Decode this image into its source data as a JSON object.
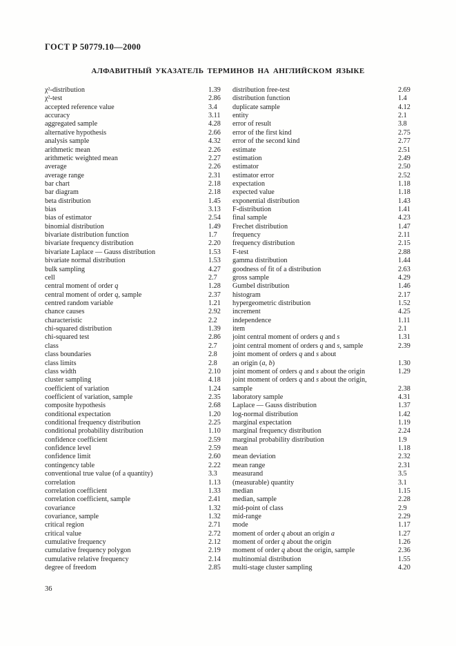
{
  "page": {
    "header": "ГОСТ Р 50779.10—2000",
    "title": "АЛФАВИТНЫЙ УКАЗАТЕЛЬ ТЕРМИНОВ НА АНГЛИЙСКОМ ЯЗЫКЕ",
    "page_number": "36"
  },
  "index": {
    "left_column": [
      {
        "term": "χ²-distribution",
        "ref": "1.39"
      },
      {
        "term": "χ²-test",
        "ref": "2.86"
      },
      {
        "term": "accepted reference value",
        "ref": "3.4"
      },
      {
        "term": "accuracy",
        "ref": "3.11"
      },
      {
        "term": "aggregated sample",
        "ref": "4.28"
      },
      {
        "term": "alternative hypothesis",
        "ref": "2.66"
      },
      {
        "term": "analysis sample",
        "ref": "4.32"
      },
      {
        "term": "arithmetic mean",
        "ref": "2.26"
      },
      {
        "term": "arithmetic weighted mean",
        "ref": "2.27"
      },
      {
        "term": "average",
        "ref": "2.26"
      },
      {
        "term": "average range",
        "ref": "2.31"
      },
      {
        "term": "bar chart",
        "ref": "2.18"
      },
      {
        "term": "bar diagram",
        "ref": "2.18"
      },
      {
        "term": "beta distribution",
        "ref": "1.45"
      },
      {
        "term": "bias",
        "ref": "3.13"
      },
      {
        "term": "bias of estimator",
        "ref": "2.54"
      },
      {
        "term": "binomial distribution",
        "ref": "1.49"
      },
      {
        "term": "bivariate distribution function",
        "ref": "1.7"
      },
      {
        "term": "bivariate frequency distribution",
        "ref": "2.20"
      },
      {
        "term": "bivariate Laplace — Gauss distribution",
        "ref": "1.53"
      },
      {
        "term": "bivariate normal distribution",
        "ref": "1.53"
      },
      {
        "term": "bulk sampling",
        "ref": "4.27"
      },
      {
        "term": "cell",
        "ref": "2.7"
      },
      {
        "term": "central moment of order *q*",
        "ref": "1.28"
      },
      {
        "term": "central moment of order *q*, sample",
        "ref": "2.37"
      },
      {
        "term": "centred random variable",
        "ref": "1.21"
      },
      {
        "term": "chance causes",
        "ref": "2.92"
      },
      {
        "term": "characteristic",
        "ref": "2.2"
      },
      {
        "term": "chi-squared distribution",
        "ref": "1.39"
      },
      {
        "term": "chi-squared test",
        "ref": "2.86"
      },
      {
        "term": "class",
        "ref": "2.7"
      },
      {
        "term": "class boundaries",
        "ref": "2.8"
      },
      {
        "term": "class limits",
        "ref": "2.8"
      },
      {
        "term": "class width",
        "ref": "2.10"
      },
      {
        "term": "cluster sampling",
        "ref": "4.18"
      },
      {
        "term": "coefficient of variation",
        "ref": "1.24"
      },
      {
        "term": "coefficient of variation, sample",
        "ref": "2.35"
      },
      {
        "term": "composite hypothesis",
        "ref": "2.68"
      },
      {
        "term": "conditional expectation",
        "ref": "1.20"
      },
      {
        "term": "conditional frequency distribution",
        "ref": "2.25"
      },
      {
        "term": "conditional probability distribution",
        "ref": "1.10"
      },
      {
        "term": "confidence coefficient",
        "ref": "2.59"
      },
      {
        "term": "confidence level",
        "ref": "2.59"
      },
      {
        "term": "confidence limit",
        "ref": "2.60"
      },
      {
        "term": "contingency table",
        "ref": "2.22"
      },
      {
        "term": "conventional true value (of a quantity)",
        "ref": "3.3"
      },
      {
        "term": "correlation",
        "ref": "1.13"
      },
      {
        "term": "correlation coefficient",
        "ref": "1.33"
      },
      {
        "term": "correlation coefficient, sample",
        "ref": "2.41"
      },
      {
        "term": "covariance",
        "ref": "1.32"
      },
      {
        "term": "covariance, sample",
        "ref": "1.32"
      },
      {
        "term": "critical region",
        "ref": "2.71"
      },
      {
        "term": "critical value",
        "ref": "2.72"
      },
      {
        "term": "cumulative frequency",
        "ref": "2.12"
      },
      {
        "term": "cumulative frequency polygon",
        "ref": "2.19"
      },
      {
        "term": "cumulative relative frequency",
        "ref": "2.14"
      },
      {
        "term": "degree of freedom",
        "ref": "2.85"
      }
    ],
    "right_column": [
      {
        "term": "distribution free-test",
        "ref": "2.69"
      },
      {
        "term": "distribution function",
        "ref": "1.4"
      },
      {
        "term": "duplicate sample",
        "ref": "4.12"
      },
      {
        "term": "entity",
        "ref": "2.1"
      },
      {
        "term": "error of result",
        "ref": "3.8"
      },
      {
        "term": "error of the first kind",
        "ref": "2.75"
      },
      {
        "term": "error of the second kind",
        "ref": "2.77"
      },
      {
        "term": "estimate",
        "ref": "2.51"
      },
      {
        "term": "estimation",
        "ref": "2.49"
      },
      {
        "term": "estimator",
        "ref": "2.50"
      },
      {
        "term": "estimator error",
        "ref": "2.52"
      },
      {
        "term": "expectation",
        "ref": "1.18"
      },
      {
        "term": "expected value",
        "ref": "1.18"
      },
      {
        "term": "exponential distribution",
        "ref": "1.43"
      },
      {
        "term": "F-distribution",
        "ref": "1.41"
      },
      {
        "term": "final sample",
        "ref": "4.23"
      },
      {
        "term": "Frechet distribution",
        "ref": "1.47"
      },
      {
        "term": "frequency",
        "ref": "2.11"
      },
      {
        "term": "frequency distribution",
        "ref": "2.15"
      },
      {
        "term": "F-test",
        "ref": "2.88"
      },
      {
        "term": "gamma distribution",
        "ref": "1.44"
      },
      {
        "term": "goodness of fit of a distribution",
        "ref": "2.63"
      },
      {
        "term": "gross sample",
        "ref": "4.29"
      },
      {
        "term": "Gumbel distribution",
        "ref": "1.46"
      },
      {
        "term": "histogram",
        "ref": "2.17"
      },
      {
        "term": "hypergeometric distribution",
        "ref": "1.52"
      },
      {
        "term": "increment",
        "ref": "4.25"
      },
      {
        "term": "independence",
        "ref": "1.11"
      },
      {
        "term": "item",
        "ref": "2.1"
      },
      {
        "term": "joint central moment of orders *q* and *s*",
        "ref": "1.31"
      },
      {
        "term": "joint central moment of orders *q* and *s*, sample",
        "ref": "2.39"
      },
      {
        "term": "joint moment of orders *q* and *s* about",
        "ref": ""
      },
      {
        "term": "an origin (*a*, *b*)",
        "ref": "1.30"
      },
      {
        "term": "joint moment of orders *q* and *s* about the origin",
        "ref": "1.29"
      },
      {
        "term": "joint moment of orders *q* and *s* about the origin,",
        "ref": ""
      },
      {
        "term": "sample",
        "ref": "2.38"
      },
      {
        "term": "laboratory sample",
        "ref": "4.31"
      },
      {
        "term": "Laplace — Gauss distribution",
        "ref": "1.37"
      },
      {
        "term": "log-normal distribution",
        "ref": "1.42"
      },
      {
        "term": "marginal expectation",
        "ref": "1.19"
      },
      {
        "term": "marginal frequency distribution",
        "ref": "2.24"
      },
      {
        "term": "marginal probability distribution",
        "ref": "1.9"
      },
      {
        "term": "mean",
        "ref": "1.18"
      },
      {
        "term": "mean deviation",
        "ref": "2.32"
      },
      {
        "term": "mean range",
        "ref": "2.31"
      },
      {
        "term": "measurand",
        "ref": "3.5"
      },
      {
        "term": "(measurable) quantity",
        "ref": "3.1"
      },
      {
        "term": "median",
        "ref": "1.15"
      },
      {
        "term": "median, sample",
        "ref": "2.28"
      },
      {
        "term": "mid-point of class",
        "ref": "2.9"
      },
      {
        "term": "mid-range",
        "ref": "2.29"
      },
      {
        "term": "mode",
        "ref": "1.17"
      },
      {
        "term": "moment of order *q* about an origin *a*",
        "ref": "1.27"
      },
      {
        "term": "moment of order *q* about the origin",
        "ref": "1.26"
      },
      {
        "term": "moment of order *q* about the origin, sample",
        "ref": "2.36"
      },
      {
        "term": "multinomial distribution",
        "ref": "1.55"
      },
      {
        "term": "multi-stage cluster sampling",
        "ref": "4.20"
      }
    ]
  }
}
